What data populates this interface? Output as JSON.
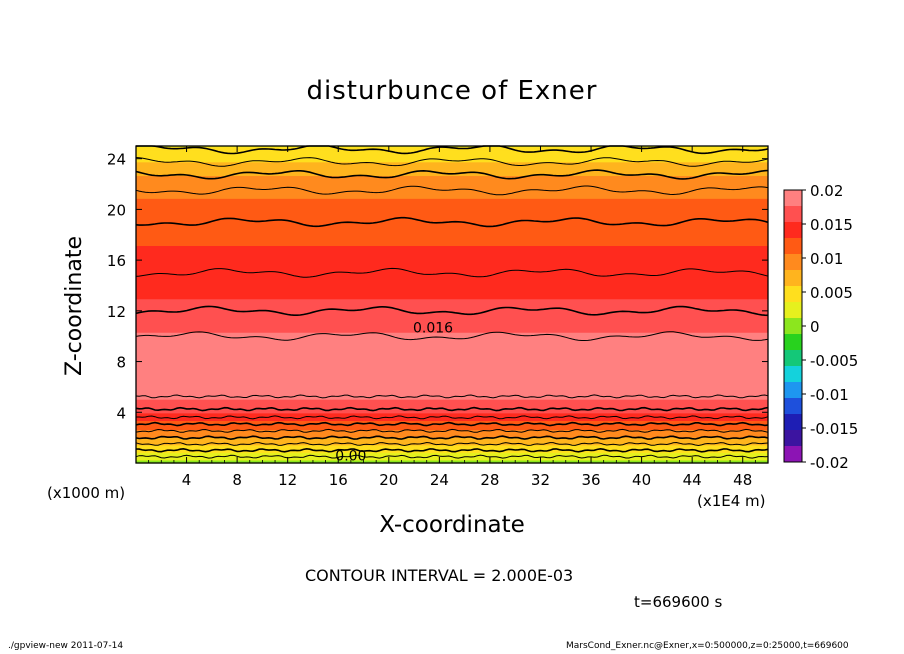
{
  "chart_data": {
    "type": "contour",
    "title": "disturbunce of Exner",
    "xlabel": "X-coordinate",
    "ylabel": "Z-coordinate",
    "x_unit_label": "(x1E4 m)",
    "y_unit_label": "(x1000 m)",
    "xlim": [
      0,
      50
    ],
    "ylim": [
      0,
      25
    ],
    "x_ticks": [
      "4",
      "8",
      "12",
      "16",
      "20",
      "24",
      "28",
      "32",
      "36",
      "40",
      "44",
      "48"
    ],
    "y_ticks": [
      "4",
      "8",
      "12",
      "16",
      "20",
      "24"
    ],
    "contour_interval_text": "CONTOUR INTERVAL = 2.000E-03",
    "contour_labels": [
      {
        "text": "0.016",
        "x": 23.5,
        "z": 10.3
      },
      {
        "text": "0.00",
        "x": 17,
        "z": 0.2
      }
    ],
    "colorbar": {
      "tick_labels": [
        "0.02",
        "0.015",
        "0.01",
        "0.005",
        "0",
        "-0.005",
        "-0.01",
        "-0.015",
        "-0.02"
      ],
      "range": [
        -0.02,
        0.02
      ],
      "colors": [
        "#ff8080",
        "#ff5050",
        "#ff2a1e",
        "#ff5a14",
        "#ff8a1e",
        "#ffb41e",
        "#ffdf1e",
        "#e6f01e",
        "#8ce61e",
        "#28d21e",
        "#14c878",
        "#14d2dc",
        "#1e96f0",
        "#1e50dc",
        "#1e1eb4",
        "#3c14a0",
        "#8c14b4"
      ]
    },
    "vertical_profile": {
      "z": [
        0,
        2,
        4,
        6,
        8,
        10,
        12,
        14,
        16,
        18,
        20,
        22,
        24,
        25
      ],
      "value": [
        0.0,
        0.008,
        0.0155,
        0.0195,
        0.02,
        0.018,
        0.016,
        0.0145,
        0.0135,
        0.0125,
        0.0115,
        0.0095,
        0.0055,
        0.0035
      ]
    }
  },
  "time_label": "t=669600 s",
  "footer": {
    "left": "./gpview-new   2011-07-14",
    "right": "MarsCond_Exner.nc@Exner,x=0:500000,z=0:25000,t=669600"
  }
}
